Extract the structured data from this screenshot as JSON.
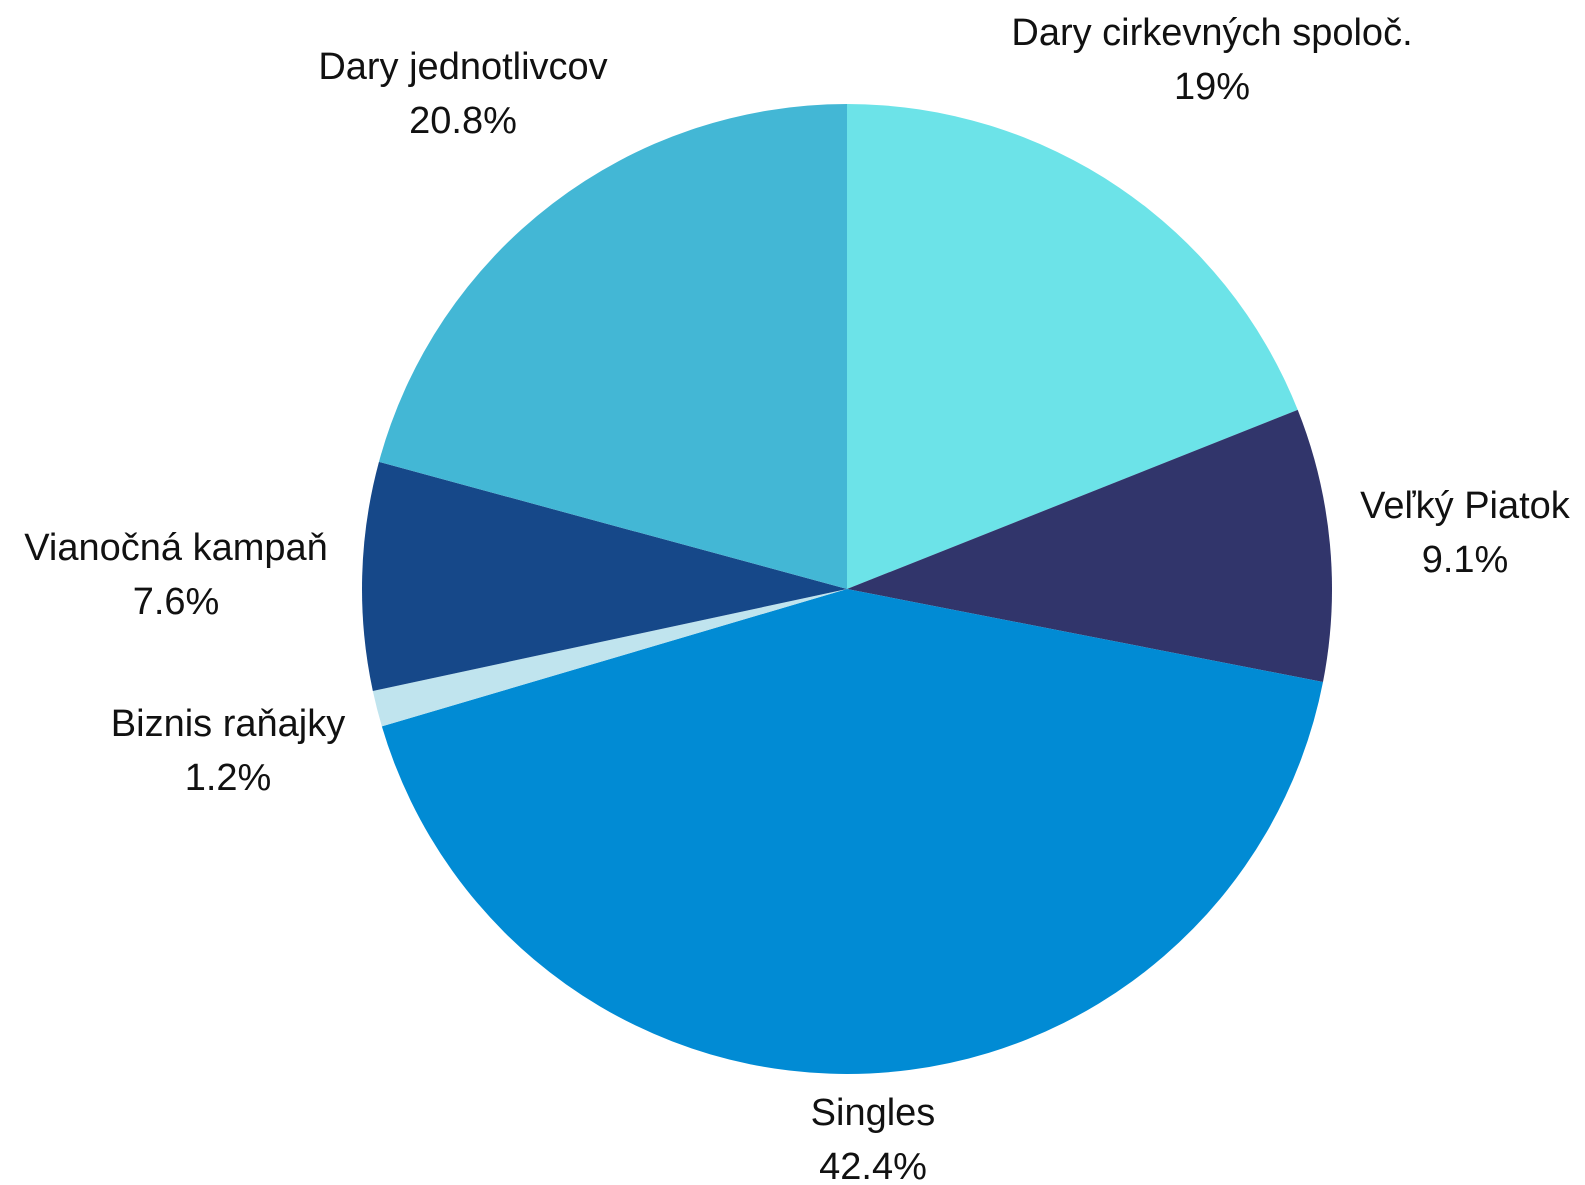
{
  "chart_data": {
    "type": "pie",
    "title": "",
    "start_angle_deg": 0,
    "direction": "clockwise",
    "slices": [
      {
        "label": "Dary cirkevných spoloč.",
        "value": 19.0,
        "value_label": "19%",
        "color": "#6ce3e8"
      },
      {
        "label": "Veľký Piatok",
        "value": 9.1,
        "value_label": "9.1%",
        "color": "#31356b"
      },
      {
        "label": "Singles",
        "value": 42.4,
        "value_label": "42.4%",
        "color": "#018bd4"
      },
      {
        "label": "Biznis raňajky",
        "value": 1.2,
        "value_label": "1.2%",
        "color": "#c0e4ee"
      },
      {
        "label": "Vianočná kampaň",
        "value": 7.6,
        "value_label": "7.6%",
        "color": "#164889"
      },
      {
        "label": "Dary jednotlivcov",
        "value": 20.8,
        "value_label": "20.8%",
        "color": "#43b7d5"
      }
    ]
  }
}
